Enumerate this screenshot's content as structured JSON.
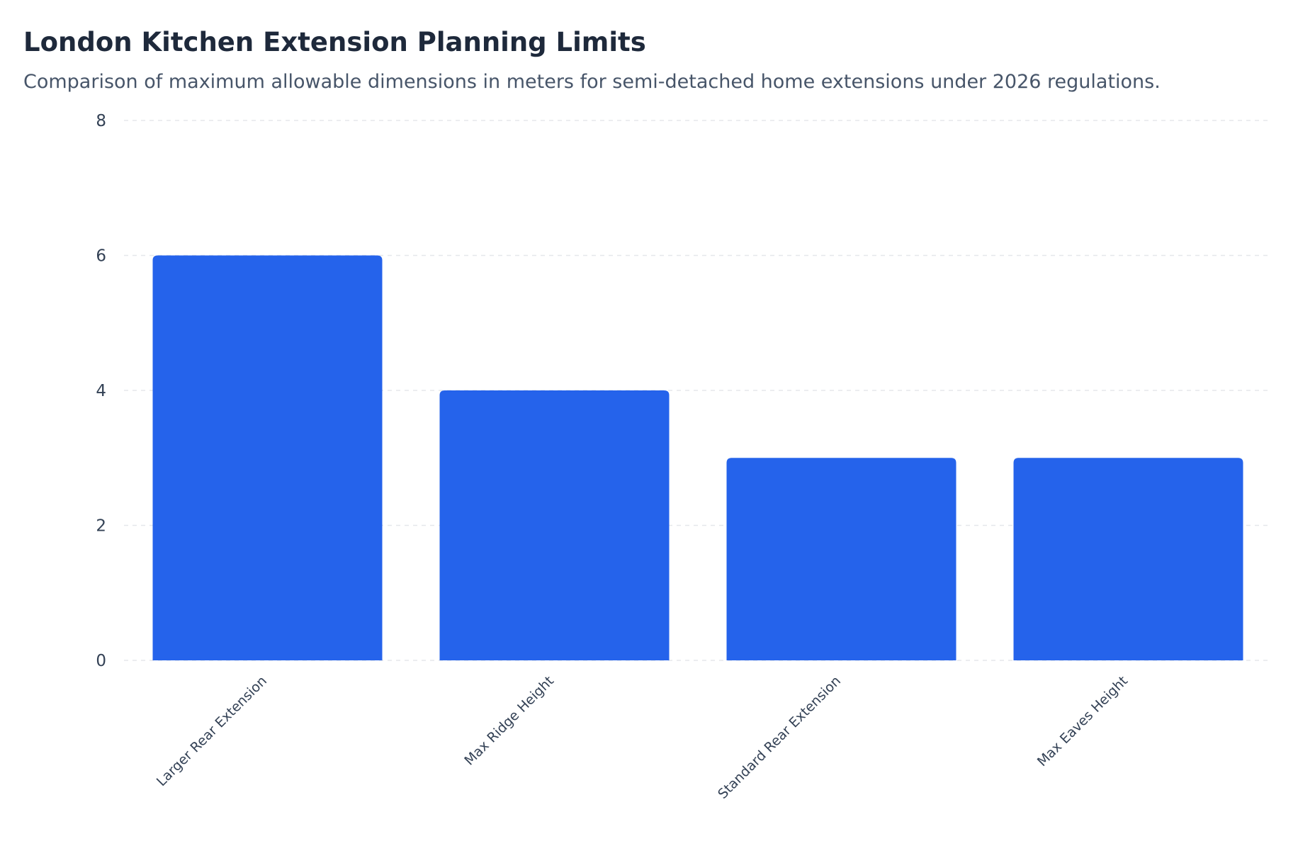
{
  "chart_data": {
    "type": "bar",
    "title": "London Kitchen Extension Planning Limits",
    "subtitle": "Comparison of maximum allowable dimensions in meters for semi-detached home extensions under 2026 regulations.",
    "categories": [
      "Larger Rear Extension",
      "Max Ridge Height",
      "Standard Rear Extension",
      "Max Eaves Height"
    ],
    "values": [
      6,
      4,
      3,
      3
    ],
    "xlabel": "",
    "ylabel": "",
    "ylim": [
      0,
      8
    ],
    "yticks": [
      0,
      2,
      4,
      6,
      8
    ],
    "grid": true,
    "legend": "none",
    "bar_color": "#2563eb",
    "grid_color": "#e5e7eb"
  }
}
